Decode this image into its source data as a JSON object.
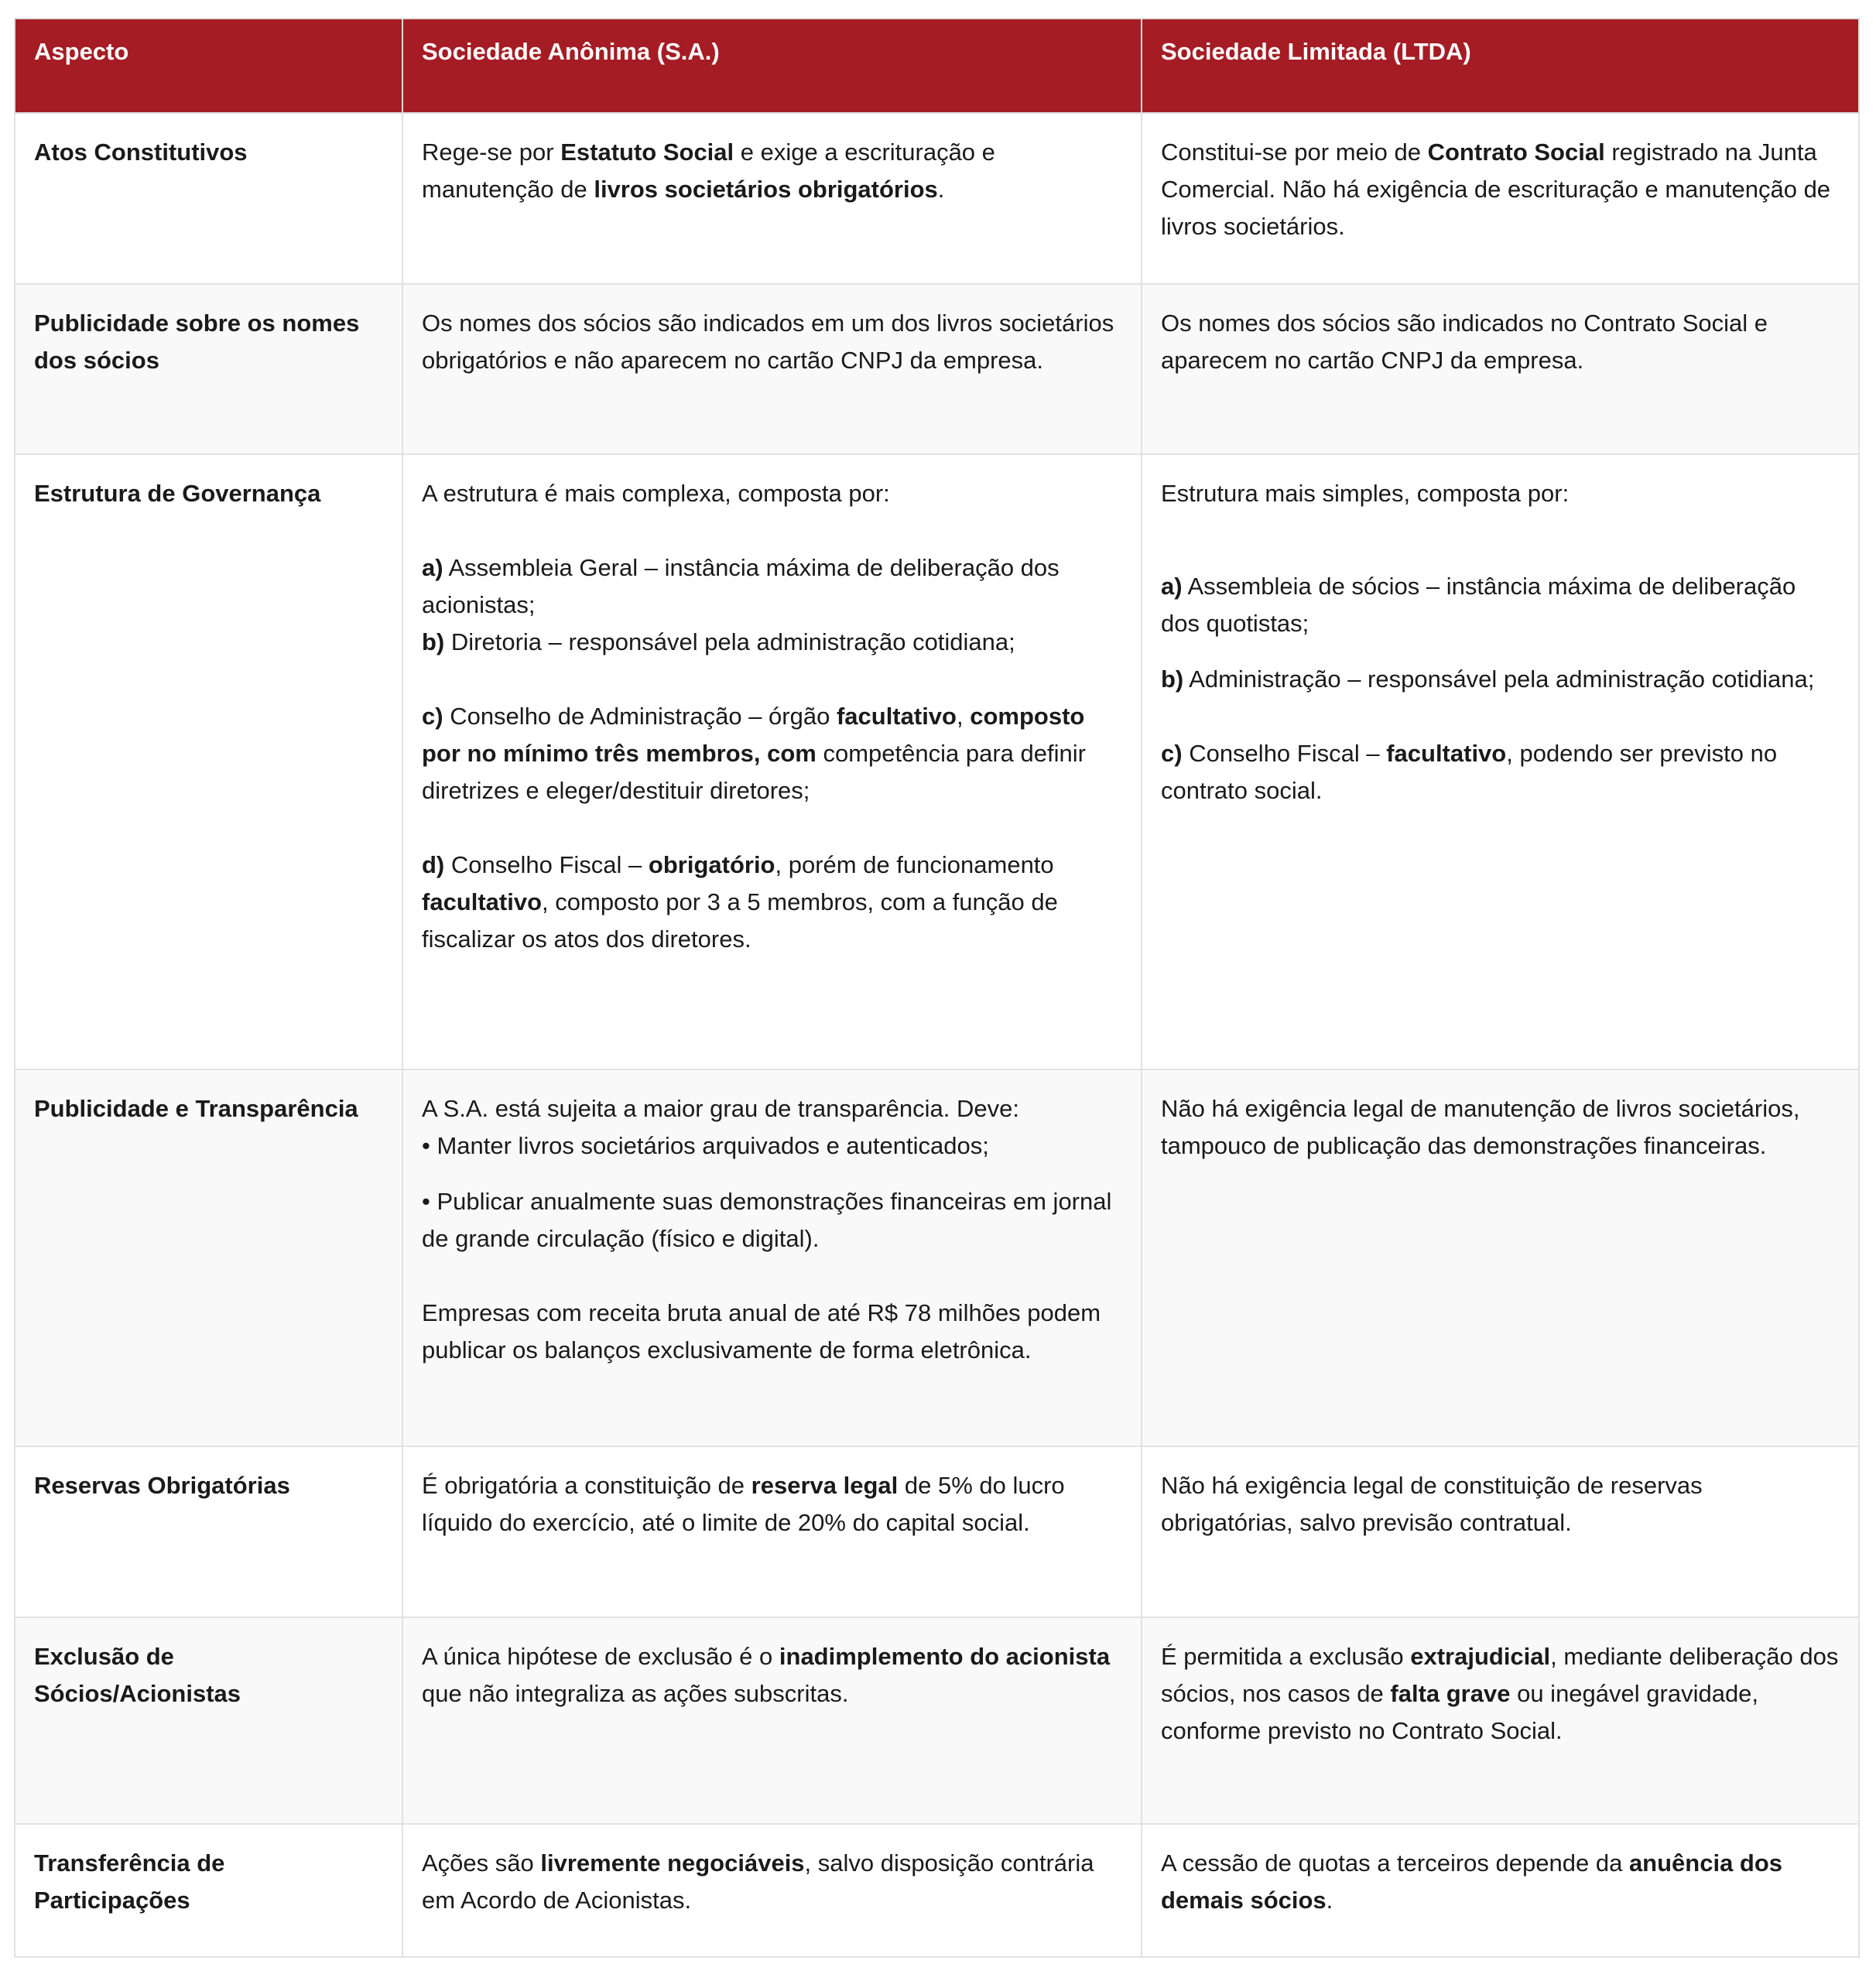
{
  "colors": {
    "header_bg": "#a51c24",
    "header_text": "#ffffff",
    "border": "#e2e2e2"
  },
  "header": [
    "Aspecto",
    "Sociedade Anônima (S.A.)",
    "Sociedade Limitada (LTDA)"
  ],
  "rows": [
    {
      "aspect": "Atos Constitutivos",
      "sa": [
        [
          {
            "t": "Rege-se por "
          },
          {
            "t": "Estatuto Social",
            "b": true
          },
          {
            "t": " e exige a escrituração e manutenção de "
          },
          {
            "t": "livros societários obrigatórios",
            "b": true
          },
          {
            "t": "."
          }
        ]
      ],
      "ltda": [
        [
          {
            "t": "Constitui-se por meio de "
          },
          {
            "t": "Contrato Social",
            "b": true
          },
          {
            "t": " registrado na Junta Comercial. Não há exigência de escrituração e manutenção de livros societários."
          }
        ]
      ]
    },
    {
      "aspect": "Publicidade sobre os nomes dos sócios",
      "sa": [
        [
          {
            "t": "Os nomes dos sócios são indicados em um dos livros societários obrigatórios e não aparecem no cartão CNPJ da empresa."
          }
        ]
      ],
      "ltda": [
        [
          {
            "t": "Os nomes dos sócios são indicados no Contrato Social e aparecem no cartão CNPJ da empresa."
          }
        ]
      ]
    },
    {
      "aspect": "Estrutura de Governança",
      "sa": [
        [
          {
            "t": "A estrutura é mais complexa, composta por:"
          }
        ],
        [
          {
            "t": "a)",
            "b": true
          },
          {
            "t": " Assembleia Geral – instância máxima de deliberação dos acionistas;"
          }
        ],
        [
          {
            "t": "b)",
            "b": true
          },
          {
            "t": " Diretoria – responsável pela administração cotidiana;"
          }
        ],
        [
          {
            "t": "c)",
            "b": true
          },
          {
            "t": " Conselho de Administração – órgão "
          },
          {
            "t": "facultativo",
            "b": true
          },
          {
            "t": ", "
          },
          {
            "t": "composto por no mínimo três membros, com",
            "b": true
          },
          {
            "t": " competência para definir diretrizes e eleger/destituir diretores;"
          }
        ],
        [
          {
            "t": "d)",
            "b": true
          },
          {
            "t": " Conselho Fiscal – "
          },
          {
            "t": "obrigatório",
            "b": true
          },
          {
            "t": ", porém de funcionamento "
          },
          {
            "t": "facultativo",
            "b": true
          },
          {
            "t": ", composto por 3 a 5 membros, com a função de fiscalizar os atos dos diretores."
          }
        ]
      ],
      "ltda": [
        [
          {
            "t": "Estrutura mais simples, composta por:"
          }
        ],
        [
          {
            "t": "a)",
            "b": true
          },
          {
            "t": " Assembleia de sócios – instância máxima de deliberação dos quotistas;"
          }
        ],
        [
          {
            "t": "b)",
            "b": true
          },
          {
            "t": " Administração – responsável pela administração cotidiana;"
          }
        ],
        [
          {
            "t": "c)",
            "b": true
          },
          {
            "t": " Conselho Fiscal – "
          },
          {
            "t": "facultativo",
            "b": true
          },
          {
            "t": ", podendo ser previsto no contrato social."
          }
        ]
      ]
    },
    {
      "aspect": "Publicidade e Transparência",
      "sa": [
        [
          {
            "t": "A S.A. está sujeita a maior grau de transparência. Deve:"
          }
        ],
        [
          {
            "t": "• Manter livros societários arquivados e autenticados;"
          }
        ],
        [
          {
            "t": "• Publicar anualmente suas demonstrações financeiras em jornal de grande circulação (físico e digital)."
          }
        ],
        [
          {
            "t": "Empresas com receita bruta anual de até R$ 78 milhões podem publicar os balanços exclusivamente de forma eletrônica."
          }
        ]
      ],
      "ltda": [
        [
          {
            "t": "Não há exigência legal de manutenção de livros societários, tampouco de publicação das demonstrações financeiras."
          }
        ]
      ]
    },
    {
      "aspect": "Reservas Obrigatórias",
      "sa": [
        [
          {
            "t": "É obrigatória a constituição de "
          },
          {
            "t": "reserva legal",
            "b": true
          },
          {
            "t": " de 5% do lucro líquido do exercício, até o limite de 20% do capital social."
          }
        ]
      ],
      "ltda": [
        [
          {
            "t": "Não há exigência legal de constituição de reservas obrigatórias, salvo previsão contratual."
          }
        ]
      ]
    },
    {
      "aspect": "Exclusão de Sócios/Acionistas",
      "sa": [
        [
          {
            "t": "A única hipótese de exclusão é o "
          },
          {
            "t": "inadimplemento do acionista",
            "b": true
          },
          {
            "t": " que não integraliza as ações subscritas."
          }
        ]
      ],
      "ltda": [
        [
          {
            "t": "É permitida a exclusão "
          },
          {
            "t": "extrajudicial",
            "b": true
          },
          {
            "t": ", mediante deliberação dos sócios, nos casos de "
          },
          {
            "t": "falta grave",
            "b": true
          },
          {
            "t": " ou inegável gravidade, conforme previsto no Contrato Social."
          }
        ]
      ]
    },
    {
      "aspect": "Transferência de Participações",
      "sa": [
        [
          {
            "t": "Ações são "
          },
          {
            "t": "livremente negociáveis",
            "b": true
          },
          {
            "t": ", salvo disposição contrária em Acordo de Acionistas."
          }
        ]
      ],
      "ltda": [
        [
          {
            "t": "A cessão de quotas a terceiros depende da "
          },
          {
            "t": "anuência dos demais sócios",
            "b": true
          },
          {
            "t": "."
          }
        ]
      ]
    }
  ]
}
